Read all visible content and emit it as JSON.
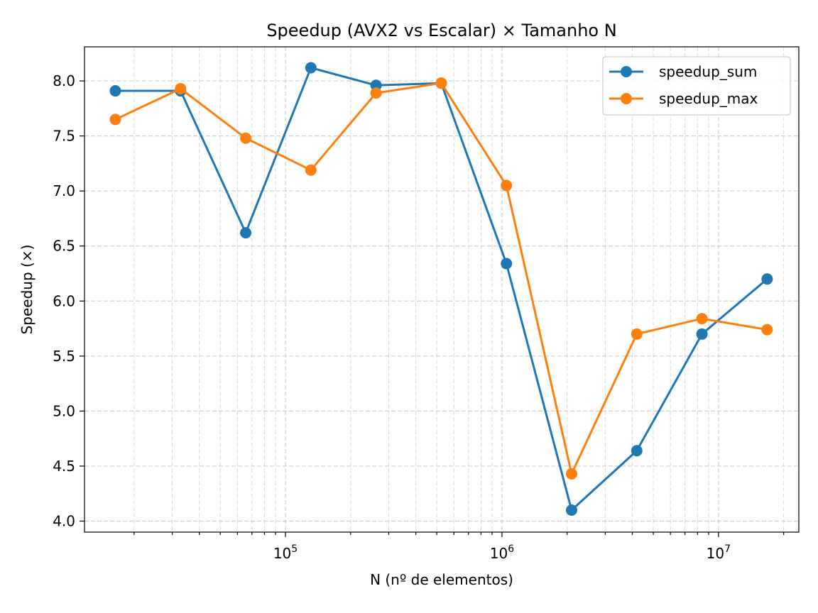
{
  "chart_data": {
    "type": "line",
    "title": "Speedup (AVX2 vs Escalar) × Tamanho N",
    "xlabel": "N (nº de elementos)",
    "ylabel": "Speedup (×)",
    "x_scale": "log",
    "xlim": [
      11800,
      23500000
    ],
    "ylim": [
      3.9,
      8.31
    ],
    "x_major_ticks": [
      {
        "value": 100000,
        "base": "10",
        "exp": "5"
      },
      {
        "value": 1000000,
        "base": "10",
        "exp": "6"
      },
      {
        "value": 10000000,
        "base": "10",
        "exp": "7"
      }
    ],
    "y_ticks": [
      "4.0",
      "4.5",
      "5.0",
      "5.5",
      "6.0",
      "6.5",
      "7.0",
      "7.5",
      "8.0"
    ],
    "grid": true,
    "legend_position": "top-right",
    "x": [
      16384,
      32768,
      65536,
      131072,
      262144,
      524288,
      1048576,
      2097152,
      4194304,
      8388608,
      16777216
    ],
    "series": [
      {
        "name": "speedup_sum",
        "color": "#1f77b4",
        "values": [
          7.91,
          7.91,
          6.62,
          8.12,
          7.96,
          7.98,
          6.34,
          4.1,
          4.64,
          5.7,
          6.2
        ]
      },
      {
        "name": "speedup_max",
        "color": "#ff7f0e",
        "values": [
          7.65,
          7.93,
          7.48,
          7.19,
          7.89,
          7.98,
          7.05,
          4.43,
          5.7,
          5.84,
          5.74
        ]
      }
    ]
  }
}
